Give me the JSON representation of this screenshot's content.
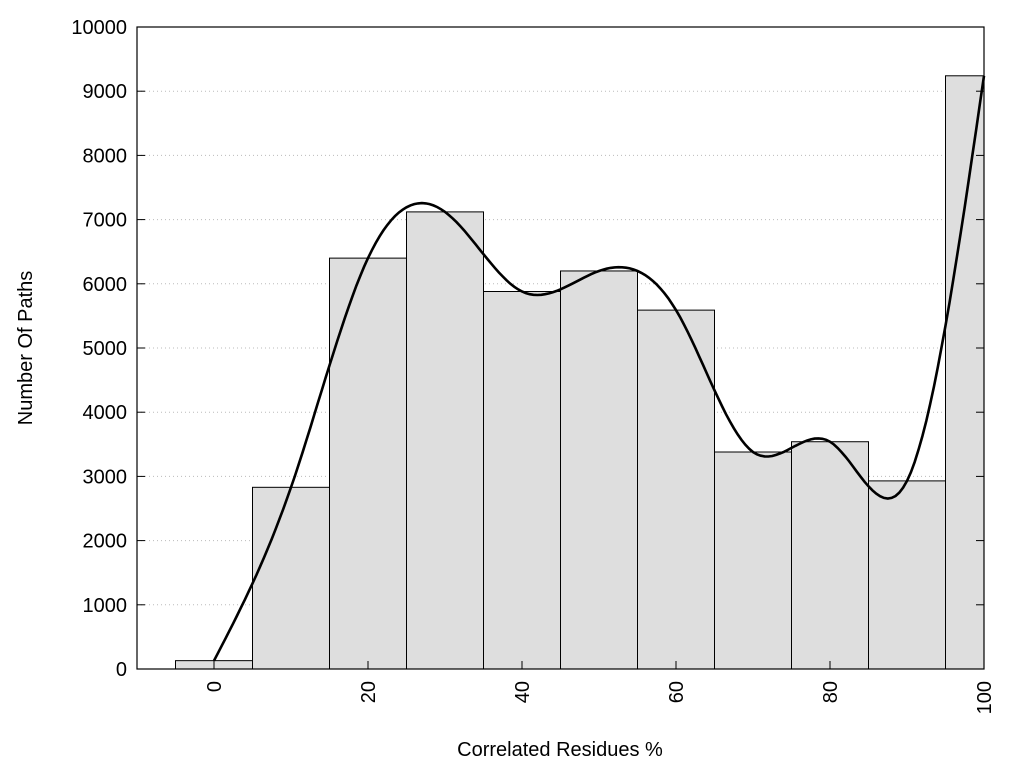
{
  "chart_data": {
    "type": "bar",
    "title": "",
    "xlabel": "Correlated Residues %",
    "ylabel": "Number Of Paths",
    "xlim": [
      -10,
      100
    ],
    "ylim": [
      0,
      10000
    ],
    "grid": {
      "y": true,
      "x": false,
      "style": "dotted"
    },
    "bar_width": 10,
    "x": [
      0,
      10,
      20,
      30,
      40,
      50,
      60,
      70,
      80,
      90,
      100
    ],
    "values": [
      130,
      2830,
      6400,
      7120,
      5880,
      6200,
      5590,
      3380,
      3540,
      2930,
      9240
    ],
    "smoothed_line": true,
    "x_ticks": [
      "0",
      "20",
      "40",
      "60",
      "80",
      "100"
    ],
    "x_tick_values": [
      0,
      20,
      40,
      60,
      80,
      100
    ],
    "y_ticks": [
      "0",
      "1000",
      "2000",
      "3000",
      "4000",
      "5000",
      "6000",
      "7000",
      "8000",
      "9000",
      "10000"
    ],
    "y_tick_values": [
      0,
      1000,
      2000,
      3000,
      4000,
      5000,
      6000,
      7000,
      8000,
      9000,
      10000
    ],
    "colors": {
      "bar_fill": "#dedede",
      "bar_stroke": "#000000",
      "line": "#000000",
      "grid": "#bbbbbb"
    }
  }
}
